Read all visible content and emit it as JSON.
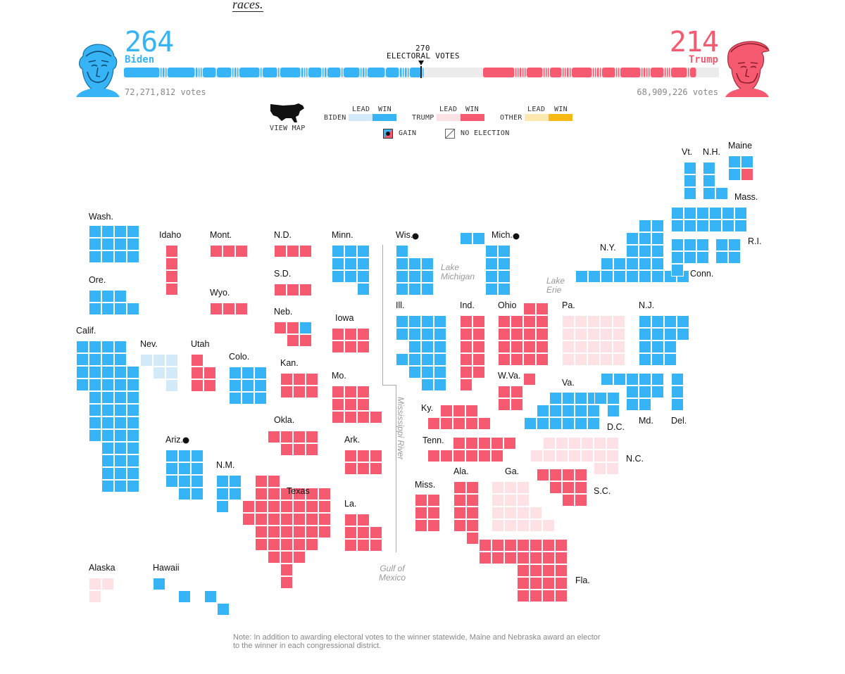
{
  "intro_text": "races.",
  "colors": {
    "biden_win": "#36b4f5",
    "biden_lead": "#d3ebf9",
    "trump_win": "#f65a70",
    "trump_lead": "#fde1e4",
    "other_lead": "#fde8b0",
    "other_win": "#f7b916",
    "no_election": "#ffffff",
    "undecided": "#ececec"
  },
  "biden": {
    "electoral_votes": "264",
    "name": "Biden",
    "popular_votes": "72,271,812 votes"
  },
  "trump": {
    "electoral_votes": "214",
    "name": "Trump",
    "popular_votes": "68,909,226 votes"
  },
  "threshold": {
    "number": "270",
    "label": "ELECTORAL VOTES"
  },
  "legend": {
    "view_map": "VIEW MAP",
    "lead": "LEAD",
    "win": "WIN",
    "biden": "BIDEN",
    "trump": "TRUMP",
    "other": "OTHER",
    "gain": "GAIN",
    "no_election": "NO ELECTION"
  },
  "states": [
    {
      "label": "Wash.",
      "status": "biden_win"
    },
    {
      "label": "Ore.",
      "status": "biden_win"
    },
    {
      "label": "Calif.",
      "status": "biden_win"
    },
    {
      "label": "Idaho",
      "status": "trump_win"
    },
    {
      "label": "Nev.",
      "status": "biden_lead"
    },
    {
      "label": "Mont.",
      "status": "trump_win"
    },
    {
      "label": "Wyo.",
      "status": "trump_win"
    },
    {
      "label": "Utah",
      "status": "trump_win"
    },
    {
      "label": "Colo.",
      "status": "biden_win"
    },
    {
      "label": "Ariz.",
      "status": "biden_win",
      "gain": true
    },
    {
      "label": "N.M.",
      "status": "biden_win"
    },
    {
      "label": "N.D.",
      "status": "trump_win"
    },
    {
      "label": "S.D.",
      "status": "trump_win"
    },
    {
      "label": "Neb.",
      "status": "trump_win"
    },
    {
      "label": "Kan.",
      "status": "trump_win"
    },
    {
      "label": "Okla.",
      "status": "trump_win"
    },
    {
      "label": "Texas",
      "status": "trump_win"
    },
    {
      "label": "Minn.",
      "status": "biden_win"
    },
    {
      "label": "Iowa",
      "status": "trump_win"
    },
    {
      "label": "Mo.",
      "status": "trump_win"
    },
    {
      "label": "Ark.",
      "status": "trump_win"
    },
    {
      "label": "La.",
      "status": "trump_win"
    },
    {
      "label": "Wis.",
      "status": "biden_win",
      "gain": true
    },
    {
      "label": "Mich.",
      "status": "biden_win",
      "gain": true
    },
    {
      "label": "Ill.",
      "status": "biden_win"
    },
    {
      "label": "Ind.",
      "status": "trump_win"
    },
    {
      "label": "Ohio",
      "status": "trump_win"
    },
    {
      "label": "Ky.",
      "status": "trump_win"
    },
    {
      "label": "Tenn.",
      "status": "trump_win"
    },
    {
      "label": "Miss.",
      "status": "trump_win"
    },
    {
      "label": "Ala.",
      "status": "trump_win"
    },
    {
      "label": "Ga.",
      "status": "trump_lead"
    },
    {
      "label": "Fla.",
      "status": "trump_win"
    },
    {
      "label": "S.C.",
      "status": "trump_win"
    },
    {
      "label": "N.C.",
      "status": "trump_lead"
    },
    {
      "label": "Va.",
      "status": "biden_win"
    },
    {
      "label": "W.Va.",
      "status": "trump_win"
    },
    {
      "label": "Pa.",
      "status": "trump_lead"
    },
    {
      "label": "N.Y.",
      "status": "biden_win"
    },
    {
      "label": "N.J.",
      "status": "biden_win"
    },
    {
      "label": "Md.",
      "status": "biden_win"
    },
    {
      "label": "Del.",
      "status": "biden_win"
    },
    {
      "label": "D.C.",
      "status": "biden_win"
    },
    {
      "label": "Conn.",
      "status": "biden_win"
    },
    {
      "label": "R.I.",
      "status": "biden_win"
    },
    {
      "label": "Mass.",
      "status": "biden_win"
    },
    {
      "label": "Vt.",
      "status": "biden_win"
    },
    {
      "label": "N.H.",
      "status": "biden_win"
    },
    {
      "label": "Maine",
      "status": "biden_win"
    },
    {
      "label": "Alaska",
      "status": "trump_lead"
    },
    {
      "label": "Hawaii",
      "status": "biden_win"
    }
  ],
  "geography": {
    "lake_michigan": "Lake\nMichigan",
    "lake_erie": "Lake\nErie",
    "mississippi": "Mississippi River",
    "gulf": "Gulf of\nMexico"
  },
  "note": "Note: In addition to awarding electoral votes to the winner statewide, Maine and Nebraska award an elector to the winner in each congressional district."
}
